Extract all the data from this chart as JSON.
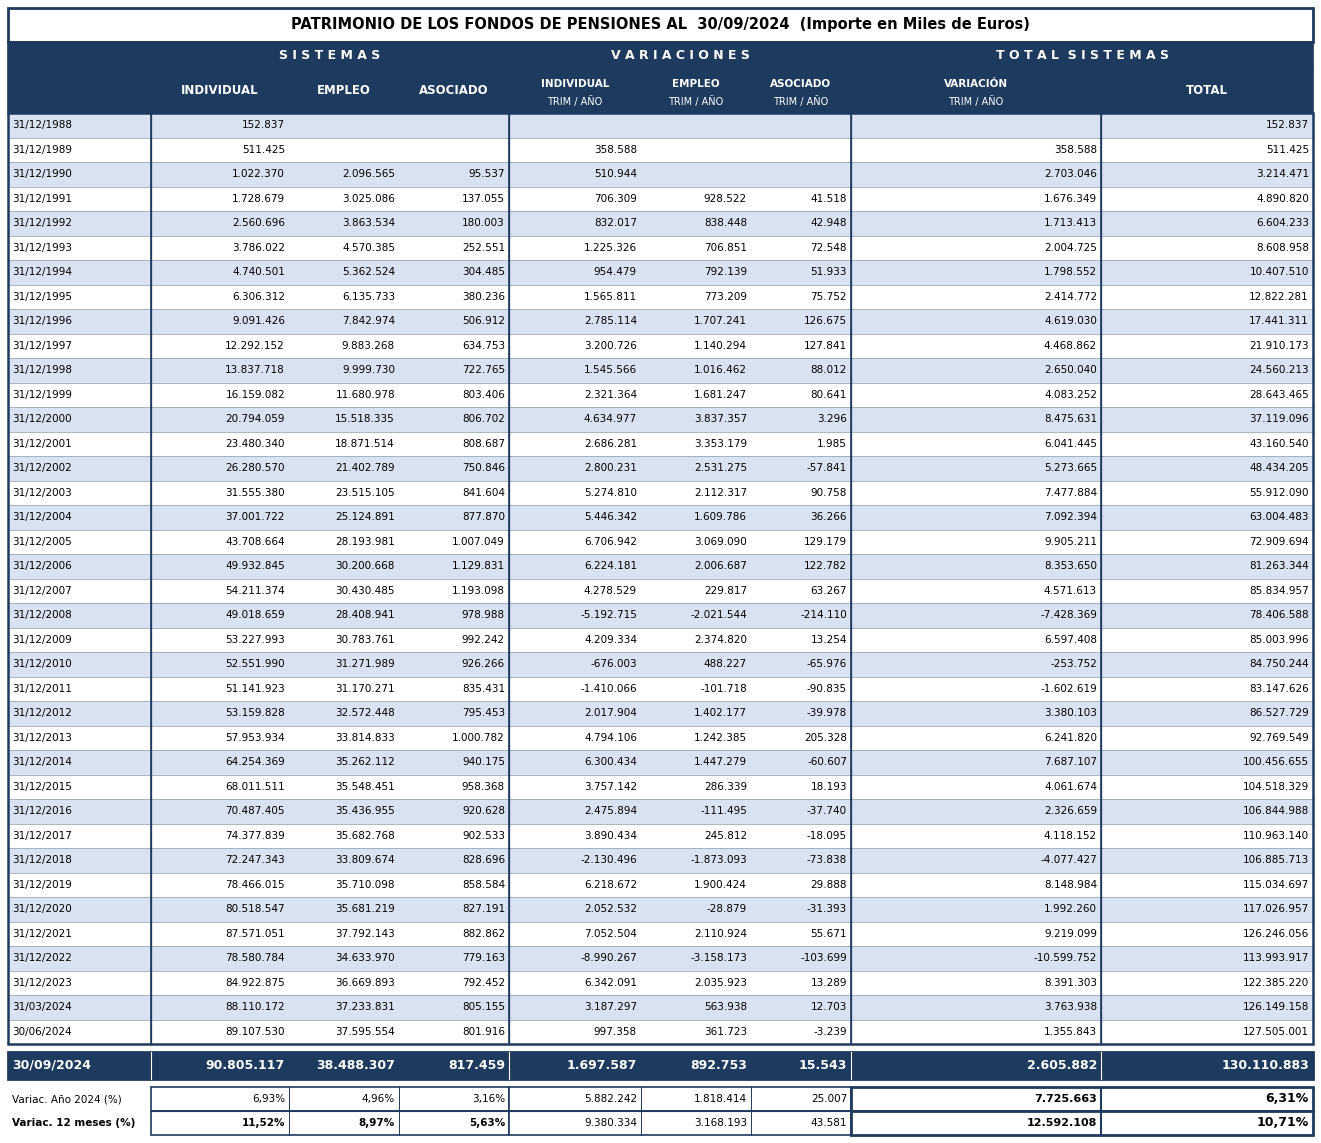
{
  "title": "PATRIMONIO DE LOS FONDOS DE PENSIONES AL  30/09/2024  (Importe en Miles de Euros)",
  "rows": [
    [
      "31/12/1988",
      "152.837",
      "",
      "",
      "",
      "",
      "",
      "",
      "152.837"
    ],
    [
      "31/12/1989",
      "511.425",
      "",
      "",
      "358.588",
      "",
      "",
      "358.588",
      "511.425"
    ],
    [
      "31/12/1990",
      "1.022.370",
      "2.096.565",
      "95.537",
      "510.944",
      "",
      "",
      "2.703.046",
      "3.214.471"
    ],
    [
      "31/12/1991",
      "1.728.679",
      "3.025.086",
      "137.055",
      "706.309",
      "928.522",
      "41.518",
      "1.676.349",
      "4.890.820"
    ],
    [
      "31/12/1992",
      "2.560.696",
      "3.863.534",
      "180.003",
      "832.017",
      "838.448",
      "42.948",
      "1.713.413",
      "6.604.233"
    ],
    [
      "31/12/1993",
      "3.786.022",
      "4.570.385",
      "252.551",
      "1.225.326",
      "706.851",
      "72.548",
      "2.004.725",
      "8.608.958"
    ],
    [
      "31/12/1994",
      "4.740.501",
      "5.362.524",
      "304.485",
      "954.479",
      "792.139",
      "51.933",
      "1.798.552",
      "10.407.510"
    ],
    [
      "31/12/1995",
      "6.306.312",
      "6.135.733",
      "380.236",
      "1.565.811",
      "773.209",
      "75.752",
      "2.414.772",
      "12.822.281"
    ],
    [
      "31/12/1996",
      "9.091.426",
      "7.842.974",
      "506.912",
      "2.785.114",
      "1.707.241",
      "126.675",
      "4.619.030",
      "17.441.311"
    ],
    [
      "31/12/1997",
      "12.292.152",
      "9.883.268",
      "634.753",
      "3.200.726",
      "1.140.294",
      "127.841",
      "4.468.862",
      "21.910.173"
    ],
    [
      "31/12/1998",
      "13.837.718",
      "9.999.730",
      "722.765",
      "1.545.566",
      "1.016.462",
      "88.012",
      "2.650.040",
      "24.560.213"
    ],
    [
      "31/12/1999",
      "16.159.082",
      "11.680.978",
      "803.406",
      "2.321.364",
      "1.681.247",
      "80.641",
      "4.083.252",
      "28.643.465"
    ],
    [
      "31/12/2000",
      "20.794.059",
      "15.518.335",
      "806.702",
      "4.634.977",
      "3.837.357",
      "3.296",
      "8.475.631",
      "37.119.096"
    ],
    [
      "31/12/2001",
      "23.480.340",
      "18.871.514",
      "808.687",
      "2.686.281",
      "3.353.179",
      "1.985",
      "6.041.445",
      "43.160.540"
    ],
    [
      "31/12/2002",
      "26.280.570",
      "21.402.789",
      "750.846",
      "2.800.231",
      "2.531.275",
      "-57.841",
      "5.273.665",
      "48.434.205"
    ],
    [
      "31/12/2003",
      "31.555.380",
      "23.515.105",
      "841.604",
      "5.274.810",
      "2.112.317",
      "90.758",
      "7.477.884",
      "55.912.090"
    ],
    [
      "31/12/2004",
      "37.001.722",
      "25.124.891",
      "877.870",
      "5.446.342",
      "1.609.786",
      "36.266",
      "7.092.394",
      "63.004.483"
    ],
    [
      "31/12/2005",
      "43.708.664",
      "28.193.981",
      "1.007.049",
      "6.706.942",
      "3.069.090",
      "129.179",
      "9.905.211",
      "72.909.694"
    ],
    [
      "31/12/2006",
      "49.932.845",
      "30.200.668",
      "1.129.831",
      "6.224.181",
      "2.006.687",
      "122.782",
      "8.353.650",
      "81.263.344"
    ],
    [
      "31/12/2007",
      "54.211.374",
      "30.430.485",
      "1.193.098",
      "4.278.529",
      "229.817",
      "63.267",
      "4.571.613",
      "85.834.957"
    ],
    [
      "31/12/2008",
      "49.018.659",
      "28.408.941",
      "978.988",
      "-5.192.715",
      "-2.021.544",
      "-214.110",
      "-7.428.369",
      "78.406.588"
    ],
    [
      "31/12/2009",
      "53.227.993",
      "30.783.761",
      "992.242",
      "4.209.334",
      "2.374.820",
      "13.254",
      "6.597.408",
      "85.003.996"
    ],
    [
      "31/12/2010",
      "52.551.990",
      "31.271.989",
      "926.266",
      "-676.003",
      "488.227",
      "-65.976",
      "-253.752",
      "84.750.244"
    ],
    [
      "31/12/2011",
      "51.141.923",
      "31.170.271",
      "835.431",
      "-1.410.066",
      "-101.718",
      "-90.835",
      "-1.602.619",
      "83.147.626"
    ],
    [
      "31/12/2012",
      "53.159.828",
      "32.572.448",
      "795.453",
      "2.017.904",
      "1.402.177",
      "-39.978",
      "3.380.103",
      "86.527.729"
    ],
    [
      "31/12/2013",
      "57.953.934",
      "33.814.833",
      "1.000.782",
      "4.794.106",
      "1.242.385",
      "205.328",
      "6.241.820",
      "92.769.549"
    ],
    [
      "31/12/2014",
      "64.254.369",
      "35.262.112",
      "940.175",
      "6.300.434",
      "1.447.279",
      "-60.607",
      "7.687.107",
      "100.456.655"
    ],
    [
      "31/12/2015",
      "68.011.511",
      "35.548.451",
      "958.368",
      "3.757.142",
      "286.339",
      "18.193",
      "4.061.674",
      "104.518.329"
    ],
    [
      "31/12/2016",
      "70.487.405",
      "35.436.955",
      "920.628",
      "2.475.894",
      "-111.495",
      "-37.740",
      "2.326.659",
      "106.844.988"
    ],
    [
      "31/12/2017",
      "74.377.839",
      "35.682.768",
      "902.533",
      "3.890.434",
      "245.812",
      "-18.095",
      "4.118.152",
      "110.963.140"
    ],
    [
      "31/12/2018",
      "72.247.343",
      "33.809.674",
      "828.696",
      "-2.130.496",
      "-1.873.093",
      "-73.838",
      "-4.077.427",
      "106.885.713"
    ],
    [
      "31/12/2019",
      "78.466.015",
      "35.710.098",
      "858.584",
      "6.218.672",
      "1.900.424",
      "29.888",
      "8.148.984",
      "115.034.697"
    ],
    [
      "31/12/2020",
      "80.518.547",
      "35.681.219",
      "827.191",
      "2.052.532",
      "-28.879",
      "-31.393",
      "1.992.260",
      "117.026.957"
    ],
    [
      "31/12/2021",
      "87.571.051",
      "37.792.143",
      "882.862",
      "7.052.504",
      "2.110.924",
      "55.671",
      "9.219.099",
      "126.246.056"
    ],
    [
      "31/12/2022",
      "78.580.784",
      "34.633.970",
      "779.163",
      "-8.990.267",
      "-3.158.173",
      "-103.699",
      "-10.599.752",
      "113.993.917"
    ],
    [
      "31/12/2023",
      "84.922.875",
      "36.669.893",
      "792.452",
      "6.342.091",
      "2.035.923",
      "13.289",
      "8.391.303",
      "122.385.220"
    ],
    [
      "31/03/2024",
      "88.110.172",
      "37.233.831",
      "805.155",
      "3.187.297",
      "563.938",
      "12.703",
      "3.763.938",
      "126.149.158"
    ],
    [
      "30/06/2024",
      "89.107.530",
      "37.595.554",
      "801.916",
      "997.358",
      "361.723",
      "-3.239",
      "1.355.843",
      "127.505.001"
    ]
  ],
  "highlight_row": [
    "30/09/2024",
    "90.805.117",
    "38.488.307",
    "817.459",
    "1.697.587",
    "892.753",
    "15.543",
    "2.605.882",
    "130.110.883"
  ],
  "variac_rows": [
    [
      "Variac. Año 2024 (%)",
      "6,93%",
      "4,96%",
      "3,16%",
      "5.882.242",
      "1.818.414",
      "25.007",
      "7.725.663",
      "6,31%"
    ],
    [
      "Variac. 12 meses (%)",
      "11,52%",
      "8,97%",
      "5,63%",
      "9.380.334",
      "3.168.193",
      "43.581",
      "12.592.108",
      "10,71%"
    ]
  ],
  "col_header_bg": "#1e3a5f",
  "col_header_fg": "#ffffff",
  "highlight_bg": "#1e3a5f",
  "highlight_fg": "#ffffff",
  "alt_row_bg": "#d9e2f0",
  "normal_row_bg": "#ffffff",
  "border_color": "#1e3a5f",
  "thin_border": "#8899aa"
}
